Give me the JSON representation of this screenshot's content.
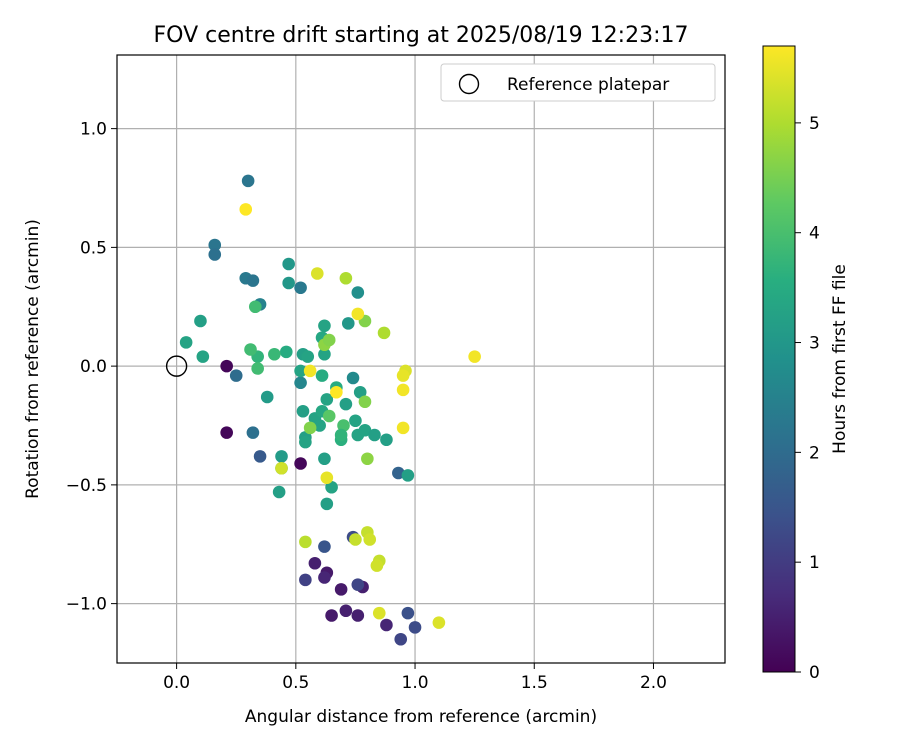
{
  "chart_data": {
    "type": "scatter",
    "title": "FOV centre drift starting at 2025/08/19 12:23:17",
    "xlabel": "Angular distance from reference (arcmin)",
    "ylabel": "Rotation from reference (arcmin)",
    "xlim": [
      -0.25,
      2.3
    ],
    "ylim": [
      -1.25,
      1.31
    ],
    "x_ticks": [
      0.0,
      0.5,
      1.0,
      1.5,
      2.0
    ],
    "x_tick_labels": [
      "0.0",
      "0.5",
      "1.0",
      "1.5",
      "2.0"
    ],
    "y_ticks": [
      -1.0,
      -0.5,
      0.0,
      0.5,
      1.0
    ],
    "y_tick_labels": [
      "−1.0",
      "−0.5",
      "0.0",
      "0.5",
      "1.0"
    ],
    "grid": true,
    "legend": {
      "placement": "top-right",
      "entries": [
        {
          "label": "Reference platepar",
          "marker": "hollow-circle"
        }
      ]
    },
    "reference_point": {
      "x": 0.0,
      "y": 0.0
    },
    "colorbar": {
      "label": "Hours from first FF file",
      "colormap": "viridis",
      "range": [
        0,
        5.7
      ],
      "ticks": [
        0,
        1,
        2,
        3,
        4,
        5
      ],
      "tick_labels": [
        "0",
        "1",
        "2",
        "3",
        "4",
        "5"
      ]
    },
    "points": [
      {
        "x": 0.21,
        "y": 0.0,
        "h": 0.1
      },
      {
        "x": 0.21,
        "y": -0.28,
        "h": 0.1
      },
      {
        "x": 0.52,
        "y": -0.41,
        "h": 0.1
      },
      {
        "x": 0.58,
        "y": -0.83,
        "h": 0.5
      },
      {
        "x": 0.63,
        "y": -0.87,
        "h": 0.4
      },
      {
        "x": 0.62,
        "y": -0.89,
        "h": 0.6
      },
      {
        "x": 0.69,
        "y": -0.94,
        "h": 0.4
      },
      {
        "x": 0.78,
        "y": -0.93,
        "h": 0.5
      },
      {
        "x": 0.65,
        "y": -1.05,
        "h": 0.4
      },
      {
        "x": 0.71,
        "y": -1.03,
        "h": 0.5
      },
      {
        "x": 0.76,
        "y": -1.05,
        "h": 0.5
      },
      {
        "x": 0.88,
        "y": -1.09,
        "h": 0.6
      },
      {
        "x": 0.54,
        "y": -0.9,
        "h": 1.1
      },
      {
        "x": 0.62,
        "y": -0.76,
        "h": 1.5
      },
      {
        "x": 0.74,
        "y": -0.72,
        "h": 1.3
      },
      {
        "x": 0.76,
        "y": -0.92,
        "h": 1.2
      },
      {
        "x": 0.94,
        "y": -1.15,
        "h": 1.2
      },
      {
        "x": 0.97,
        "y": -1.04,
        "h": 1.4
      },
      {
        "x": 1.0,
        "y": -1.1,
        "h": 1.3
      },
      {
        "x": 0.35,
        "y": -0.38,
        "h": 1.6
      },
      {
        "x": 0.93,
        "y": -0.45,
        "h": 1.8
      },
      {
        "x": 0.25,
        "y": -0.04,
        "h": 2.0
      },
      {
        "x": 0.32,
        "y": -0.28,
        "h": 2.1
      },
      {
        "x": 0.3,
        "y": 0.78,
        "h": 2.2
      },
      {
        "x": 0.16,
        "y": 0.51,
        "h": 2.2
      },
      {
        "x": 0.16,
        "y": 0.47,
        "h": 2.1
      },
      {
        "x": 0.29,
        "y": 0.37,
        "h": 2.3
      },
      {
        "x": 0.32,
        "y": 0.36,
        "h": 2.2
      },
      {
        "x": 0.52,
        "y": 0.33,
        "h": 2.3
      },
      {
        "x": 0.35,
        "y": 0.26,
        "h": 2.5
      },
      {
        "x": 0.76,
        "y": 0.31,
        "h": 2.8
      },
      {
        "x": 0.52,
        "y": -0.07,
        "h": 2.6
      },
      {
        "x": 0.74,
        "y": -0.05,
        "h": 2.7
      },
      {
        "x": 0.47,
        "y": 0.43,
        "h": 3.0
      },
      {
        "x": 0.47,
        "y": 0.35,
        "h": 3.0
      },
      {
        "x": 0.72,
        "y": 0.18,
        "h": 3.0
      },
      {
        "x": 0.1,
        "y": 0.19,
        "h": 3.2
      },
      {
        "x": 0.04,
        "y": 0.1,
        "h": 3.3
      },
      {
        "x": 0.11,
        "y": 0.04,
        "h": 3.3
      },
      {
        "x": 0.38,
        "y": -0.13,
        "h": 3.1
      },
      {
        "x": 0.44,
        "y": -0.38,
        "h": 3.1
      },
      {
        "x": 0.43,
        "y": -0.53,
        "h": 3.2
      },
      {
        "x": 0.62,
        "y": -0.39,
        "h": 3.2
      },
      {
        "x": 0.63,
        "y": -0.58,
        "h": 3.2
      },
      {
        "x": 0.65,
        "y": -0.51,
        "h": 3.3
      },
      {
        "x": 0.62,
        "y": 0.17,
        "h": 3.3
      },
      {
        "x": 0.61,
        "y": 0.12,
        "h": 3.4
      },
      {
        "x": 0.62,
        "y": 0.05,
        "h": 3.3
      },
      {
        "x": 0.53,
        "y": 0.05,
        "h": 3.2
      },
      {
        "x": 0.55,
        "y": 0.04,
        "h": 3.3
      },
      {
        "x": 0.52,
        "y": -0.02,
        "h": 3.3
      },
      {
        "x": 0.61,
        "y": -0.04,
        "h": 3.5
      },
      {
        "x": 0.53,
        "y": -0.19,
        "h": 3.2
      },
      {
        "x": 0.58,
        "y": -0.22,
        "h": 3.3
      },
      {
        "x": 0.6,
        "y": -0.25,
        "h": 3.3
      },
      {
        "x": 0.54,
        "y": -0.3,
        "h": 3.2
      },
      {
        "x": 0.54,
        "y": -0.32,
        "h": 3.3
      },
      {
        "x": 0.61,
        "y": -0.19,
        "h": 3.4
      },
      {
        "x": 0.63,
        "y": -0.14,
        "h": 3.3
      },
      {
        "x": 0.67,
        "y": -0.09,
        "h": 3.5
      },
      {
        "x": 0.71,
        "y": -0.16,
        "h": 3.2
      },
      {
        "x": 0.75,
        "y": -0.23,
        "h": 3.3
      },
      {
        "x": 0.76,
        "y": -0.29,
        "h": 3.3
      },
      {
        "x": 0.79,
        "y": -0.27,
        "h": 3.3
      },
      {
        "x": 0.83,
        "y": -0.29,
        "h": 3.2
      },
      {
        "x": 0.88,
        "y": -0.31,
        "h": 3.2
      },
      {
        "x": 0.77,
        "y": -0.11,
        "h": 3.2
      },
      {
        "x": 0.97,
        "y": -0.46,
        "h": 3.2
      },
      {
        "x": 0.44,
        "y": -0.43,
        "h": 3.4
      },
      {
        "x": 0.46,
        "y": 0.06,
        "h": 3.5
      },
      {
        "x": 0.34,
        "y": 0.04,
        "h": 3.7
      },
      {
        "x": 0.31,
        "y": 0.07,
        "h": 3.9
      },
      {
        "x": 0.41,
        "y": 0.05,
        "h": 3.8
      },
      {
        "x": 0.33,
        "y": 0.25,
        "h": 3.9
      },
      {
        "x": 0.34,
        "y": -0.01,
        "h": 3.9
      },
      {
        "x": 0.64,
        "y": -0.21,
        "h": 4.2
      },
      {
        "x": 0.7,
        "y": -0.25,
        "h": 4.0
      },
      {
        "x": 0.69,
        "y": -0.31,
        "h": 3.6
      },
      {
        "x": 0.69,
        "y": -0.29,
        "h": 3.7
      },
      {
        "x": 0.56,
        "y": -0.26,
        "h": 4.6
      },
      {
        "x": 0.62,
        "y": 0.09,
        "h": 4.7
      },
      {
        "x": 0.64,
        "y": 0.11,
        "h": 4.6
      },
      {
        "x": 0.79,
        "y": -0.15,
        "h": 4.6
      },
      {
        "x": 0.79,
        "y": 0.19,
        "h": 4.6
      },
      {
        "x": 0.8,
        "y": -0.39,
        "h": 4.7
      },
      {
        "x": 0.71,
        "y": 0.37,
        "h": 5.0
      },
      {
        "x": 0.87,
        "y": 0.14,
        "h": 5.0
      },
      {
        "x": 0.59,
        "y": 0.39,
        "h": 5.4
      },
      {
        "x": 0.76,
        "y": 0.22,
        "h": 5.6
      },
      {
        "x": 0.29,
        "y": 0.66,
        "h": 5.7
      },
      {
        "x": 1.25,
        "y": 0.04,
        "h": 5.6
      },
      {
        "x": 0.96,
        "y": -0.02,
        "h": 5.4
      },
      {
        "x": 0.95,
        "y": -0.04,
        "h": 5.5
      },
      {
        "x": 0.95,
        "y": -0.1,
        "h": 5.6
      },
      {
        "x": 0.95,
        "y": -0.26,
        "h": 5.6
      },
      {
        "x": 0.56,
        "y": -0.02,
        "h": 5.6
      },
      {
        "x": 0.67,
        "y": -0.11,
        "h": 5.7
      },
      {
        "x": 0.63,
        "y": -0.47,
        "h": 5.5
      },
      {
        "x": 0.44,
        "y": -0.43,
        "h": 5.3
      },
      {
        "x": 0.54,
        "y": -0.74,
        "h": 5.1
      },
      {
        "x": 0.75,
        "y": -0.73,
        "h": 5.2
      },
      {
        "x": 0.8,
        "y": -0.7,
        "h": 5.2
      },
      {
        "x": 0.81,
        "y": -0.73,
        "h": 5.3
      },
      {
        "x": 0.85,
        "y": -0.82,
        "h": 5.2
      },
      {
        "x": 0.84,
        "y": -0.84,
        "h": 5.3
      },
      {
        "x": 0.85,
        "y": -1.04,
        "h": 5.4
      },
      {
        "x": 1.1,
        "y": -1.08,
        "h": 5.4
      }
    ]
  }
}
